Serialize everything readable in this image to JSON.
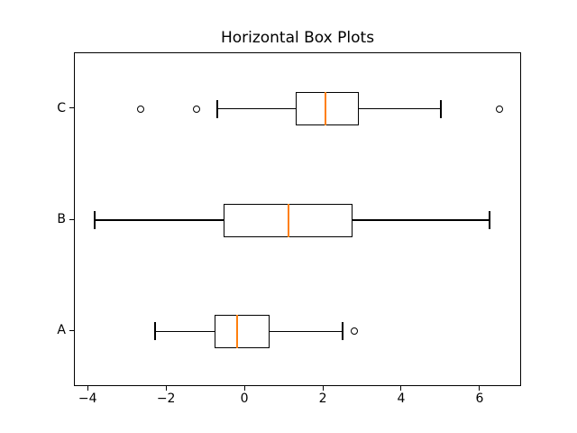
{
  "title": "Horizontal Box Plots",
  "chart_data": {
    "type": "boxplot",
    "orientation": "horizontal",
    "title": "Horizontal Box Plots",
    "categories": [
      "A",
      "B",
      "C"
    ],
    "series": [
      {
        "name": "A",
        "pos": 1,
        "whislo": -2.3,
        "q1": -0.78,
        "med": -0.21,
        "q3": 0.62,
        "whishi": 2.48,
        "fliers": [
          2.78
        ]
      },
      {
        "name": "B",
        "pos": 2,
        "whislo": -3.84,
        "q1": -0.55,
        "med": 1.1,
        "q3": 2.74,
        "whishi": 6.23,
        "fliers": []
      },
      {
        "name": "C",
        "pos": 3,
        "whislo": -0.71,
        "q1": 1.29,
        "med": 2.05,
        "q3": 2.9,
        "whishi": 4.99,
        "fliers": [
          -2.67,
          -1.24,
          6.48
        ]
      }
    ],
    "xlim": [
      -4.35,
      7.06
    ],
    "ylim": [
      0.5,
      3.5
    ],
    "x_ticks": [
      {
        "label": "−4",
        "value": -4
      },
      {
        "label": "−2",
        "value": -2
      },
      {
        "label": "0",
        "value": 0
      },
      {
        "label": "2",
        "value": 2
      },
      {
        "label": "4",
        "value": 4
      },
      {
        "label": "6",
        "value": 6
      }
    ],
    "y_ticks": [
      {
        "label": "A",
        "pos": 1
      },
      {
        "label": "B",
        "pos": 2
      },
      {
        "label": "C",
        "pos": 3
      }
    ],
    "xlabel": "",
    "ylabel": "",
    "grid": false,
    "legend": null,
    "median_color": "#ff7f0e",
    "line_color": "#000000",
    "background_color": "#ffffff"
  }
}
